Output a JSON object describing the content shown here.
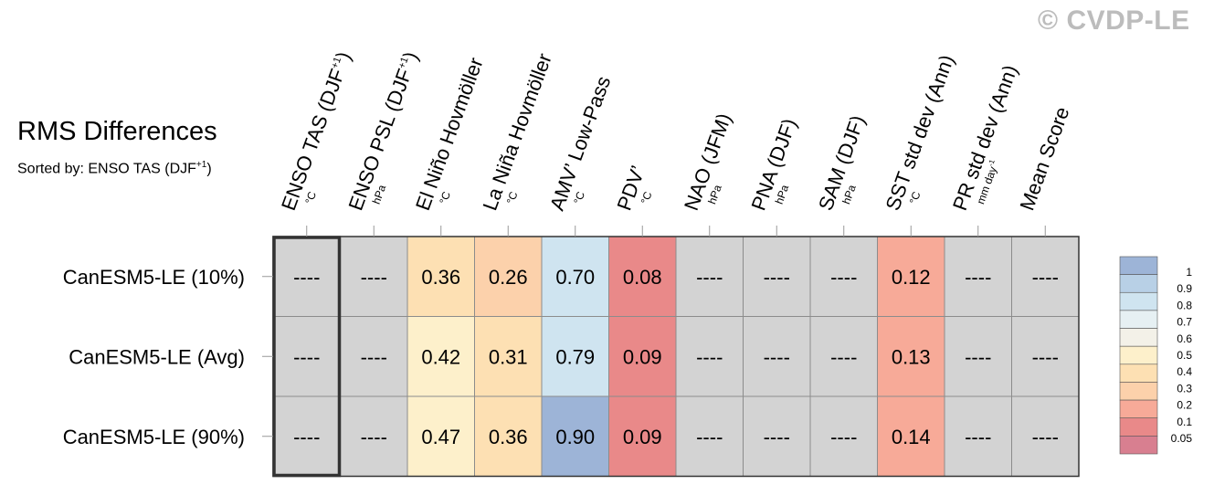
{
  "watermark": "© CVDP-LE",
  "title": "RMS Differences",
  "subtitle": {
    "prefix": "Sorted by: ENSO TAS (DJF",
    "sup": "+1",
    "suffix": ")"
  },
  "chart_data": {
    "type": "heatmap",
    "columns": [
      {
        "label": "ENSO TAS (DJF",
        "sup": "+1",
        "close": ")",
        "unit": "°C"
      },
      {
        "label": "ENSO PSL (DJF",
        "sup": "+1",
        "close": ")",
        "unit": "hPa"
      },
      {
        "label": "El Niño Hovmöller",
        "unit": "°C"
      },
      {
        "label": "La Niña Hovmöller",
        "unit": "°C"
      },
      {
        "label": "AMV’ Low-Pass",
        "unit": "°C"
      },
      {
        "label": "PDV’",
        "unit": "°C"
      },
      {
        "label": "NAO (JFM)",
        "unit": "hPa"
      },
      {
        "label": "PNA (DJF)",
        "unit": "hPa"
      },
      {
        "label": "SAM (DJF)",
        "unit": "hPa"
      },
      {
        "label": "SST std dev (Ann)",
        "unit": "°C"
      },
      {
        "label": "PR std dev (Ann)",
        "unit": "mm day",
        "unit_sup": "-1"
      },
      {
        "label": "Mean Score",
        "unit": ""
      }
    ],
    "rows": [
      "CanESM5-LE (10%)",
      "CanESM5-LE (Avg)",
      "CanESM5-LE (90%)"
    ],
    "values": [
      [
        null,
        null,
        0.36,
        0.26,
        0.7,
        0.08,
        null,
        null,
        null,
        0.12,
        null,
        null
      ],
      [
        null,
        null,
        0.42,
        0.31,
        0.79,
        0.09,
        null,
        null,
        null,
        0.13,
        null,
        null
      ],
      [
        null,
        null,
        0.47,
        0.36,
        0.9,
        0.09,
        null,
        null,
        null,
        0.14,
        null,
        null
      ]
    ],
    "missing_label": "----",
    "missing_color": "#d3d3d3",
    "highlight_column": 0,
    "colorbar": {
      "levels": [
        "1",
        "0.9",
        "0.8",
        "0.7",
        "0.6",
        "0.5",
        "0.4",
        "0.3",
        "0.2",
        "0.1",
        "0.05"
      ],
      "colors": [
        "#9db4d7",
        "#b8d0e6",
        "#cfe4f0",
        "#e6f0f3",
        "#f3f1e8",
        "#fdf0cb",
        "#fde0b3",
        "#fcd1ab",
        "#f7aa98",
        "#e98989",
        "#d87f90"
      ]
    }
  }
}
